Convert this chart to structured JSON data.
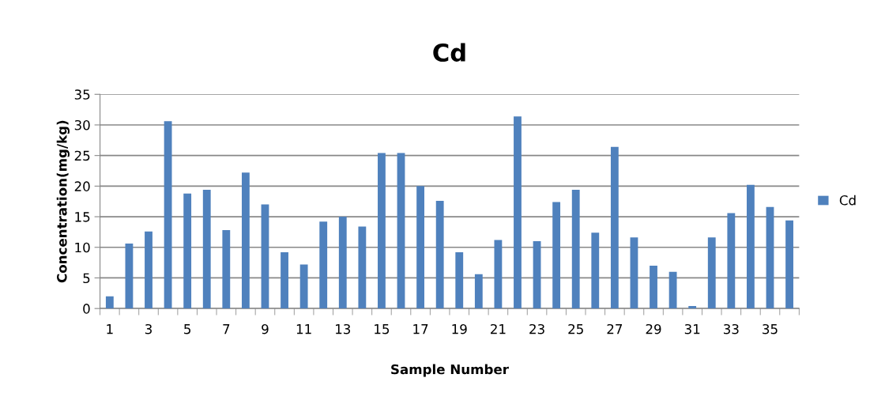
{
  "chart_data": {
    "type": "bar",
    "title": "Cd",
    "xlabel": "Sample Number",
    "ylabel": "Concentration(mg/kg)",
    "categories": [
      "1",
      null,
      "3",
      null,
      "5",
      null,
      "7",
      null,
      "9",
      null,
      "11",
      null,
      "13",
      null,
      "15",
      null,
      "17",
      null,
      "19",
      null,
      "21",
      null,
      "23",
      null,
      "25",
      null,
      "27",
      null,
      "29",
      null,
      "31",
      null,
      "33",
      null,
      "35",
      null
    ],
    "series": [
      {
        "name": "Cd",
        "color": "#4f81bd",
        "values": [
          2,
          10.6,
          12.6,
          30.6,
          18.8,
          19.4,
          12.8,
          22.2,
          17,
          9.2,
          7.2,
          14.2,
          15,
          13.4,
          25.4,
          25.4,
          20,
          17.6,
          9.2,
          5.6,
          11.2,
          31.4,
          11,
          17.4,
          19.4,
          12.4,
          26.4,
          11.6,
          7,
          6,
          0.4,
          11.6,
          15.6,
          20.2,
          16.6,
          14.4
        ]
      }
    ],
    "ylim": [
      0,
      35
    ],
    "yticks": [
      0,
      5,
      10,
      15,
      20,
      25,
      30,
      35
    ],
    "grid": "y",
    "legend": "right"
  }
}
